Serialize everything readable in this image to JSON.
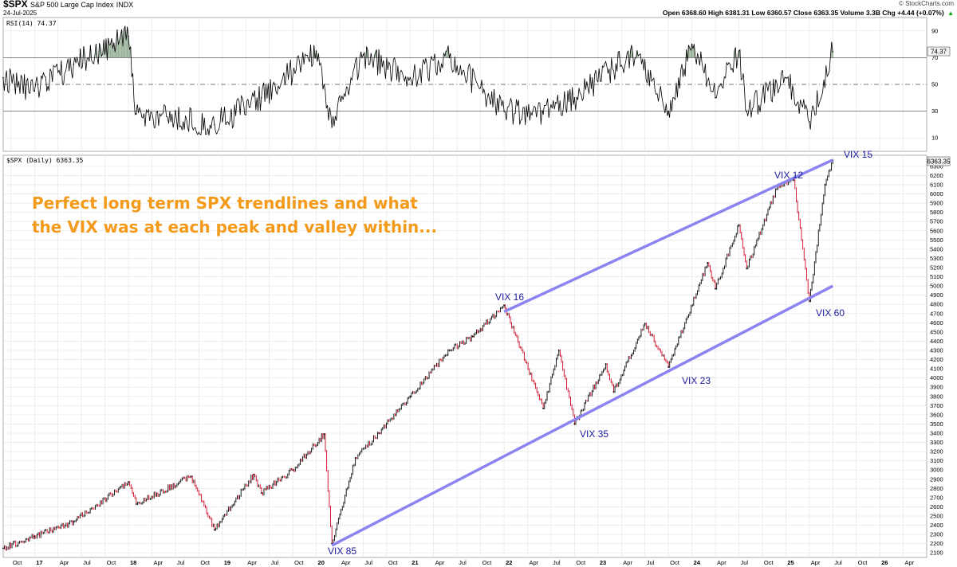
{
  "header": {
    "symbol": "$SPX",
    "name": "S&P 500 Large Cap Index",
    "exchange": "INDX",
    "date": "24-Jul-2025",
    "watermark": "© StockCharts.com",
    "open": "Open 6368.60",
    "high": "High 6381.31",
    "low": "Low 6360.57",
    "close": "Close 6363.35",
    "volume": "Volume 3.3B",
    "change": "Chg +4.44 (+0.07%)",
    "change_arrow": "▲"
  },
  "headline": {
    "line1": "Perfect long term SPX trendlines and what",
    "line2": "the VIX was at each peak and valley within..."
  },
  "rsi_panel": {
    "label": "RSI(14) 74.37",
    "last_value_badge": "74.37",
    "ticks": [
      "90",
      "70",
      "50",
      "30",
      "10"
    ]
  },
  "price_panel": {
    "label": "$SPX (Daily) 6363.35",
    "last_value_badge": "6363.35",
    "ticks": [
      "6300",
      "6200",
      "6100",
      "6000",
      "5900",
      "5800",
      "5700",
      "5600",
      "5500",
      "5400",
      "5300",
      "5200",
      "5100",
      "5000",
      "4900",
      "4800",
      "4700",
      "4600",
      "4500",
      "4400",
      "4300",
      "4200",
      "4100",
      "4000",
      "3900",
      "3800",
      "3700",
      "3600",
      "3500",
      "3400",
      "3300",
      "3200",
      "3100",
      "3000",
      "2900",
      "2800",
      "2700",
      "2600",
      "2500",
      "2400",
      "2300",
      "2200",
      "2100"
    ]
  },
  "annotations": [
    {
      "label": "VIX 85"
    },
    {
      "label": "VIX 16"
    },
    {
      "label": "VIX 35"
    },
    {
      "label": "VIX 23"
    },
    {
      "label": "VIX 12"
    },
    {
      "label": "VIX 60"
    },
    {
      "label": "VIX 15"
    }
  ],
  "x_axis_labels": [
    "Oct",
    "17",
    "Apr",
    "Jul",
    "Oct",
    "18",
    "Apr",
    "Jul",
    "Oct",
    "19",
    "Apr",
    "Jul",
    "Oct",
    "20",
    "Apr",
    "Jul",
    "Oct",
    "21",
    "Apr",
    "Jul",
    "Oct",
    "22",
    "Apr",
    "Jul",
    "Oct",
    "23",
    "Apr",
    "Jul",
    "Oct",
    "24",
    "Apr",
    "Jul",
    "Oct",
    "25",
    "Apr",
    "Jul",
    "Oct",
    "26",
    "Apr"
  ],
  "colors": {
    "trendline": "#8b84f0",
    "headline": "#f39a1b",
    "annotation": "#1a1aa0",
    "price_up": "#000000",
    "price_down": "#d0021b",
    "rsi_overbought_fill": "#3f6f3f",
    "grid": "#e2e2e2"
  },
  "chart_data": {
    "type": "line",
    "title": "$SPX (Daily)",
    "series": [
      {
        "name": "$SPX (Daily)",
        "x": [
          "2016-09",
          "2017-01",
          "2017-06",
          "2018-01",
          "2018-02",
          "2018-09",
          "2018-12",
          "2019-05",
          "2019-06",
          "2019-10",
          "2020-02",
          "2020-03",
          "2020-06",
          "2020-09",
          "2021-01",
          "2021-06",
          "2021-09",
          "2022-01",
          "2022-06",
          "2022-08",
          "2022-10",
          "2023-02",
          "2023-03",
          "2023-07",
          "2023-10",
          "2024-03",
          "2024-04",
          "2024-07",
          "2024-08",
          "2024-12",
          "2025-02",
          "2025-04",
          "2025-06",
          "2025-07"
        ],
        "values": [
          2150,
          2280,
          2440,
          2870,
          2630,
          2930,
          2350,
          2950,
          2750,
          3000,
          3390,
          2200,
          3130,
          3400,
          3800,
          4300,
          4450,
          4790,
          3670,
          4300,
          3500,
          4150,
          3850,
          4590,
          4120,
          5250,
          4970,
          5660,
          5190,
          6100,
          6150,
          4835,
          6100,
          6363
        ]
      }
    ],
    "rsi": {
      "name": "RSI(14)",
      "x": [
        "2016-09",
        "2017-01",
        "2017-06",
        "2018-01",
        "2018-02",
        "2018-12",
        "2019-06",
        "2020-01",
        "2020-03",
        "2020-07",
        "2021-01",
        "2021-06",
        "2022-01",
        "2022-06",
        "2022-10",
        "2023-06",
        "2023-10",
        "2024-01",
        "2024-04",
        "2024-07",
        "2024-08",
        "2025-01",
        "2025-04",
        "2025-07"
      ],
      "values": [
        55,
        45,
        65,
        86,
        28,
        20,
        40,
        75,
        18,
        72,
        55,
        70,
        30,
        28,
        40,
        75,
        30,
        80,
        40,
        75,
        30,
        55,
        22,
        74.37
      ],
      "ylim": [
        0,
        100
      ],
      "levels": [
        70,
        50,
        30
      ]
    },
    "trendlines": [
      {
        "name": "upper",
        "x": [
          "2022-01",
          "2025-07"
        ],
        "values": [
          4720,
          6370
        ]
      },
      {
        "name": "lower",
        "x": [
          "2020-03",
          "2025-07"
        ],
        "values": [
          2180,
          5000
        ]
      }
    ],
    "xlim": [
      "2016-09",
      "2026-07"
    ],
    "ylim": [
      2100,
      6400
    ],
    "ylabel": "",
    "xlabel": "",
    "grid": true,
    "legend": "none"
  }
}
